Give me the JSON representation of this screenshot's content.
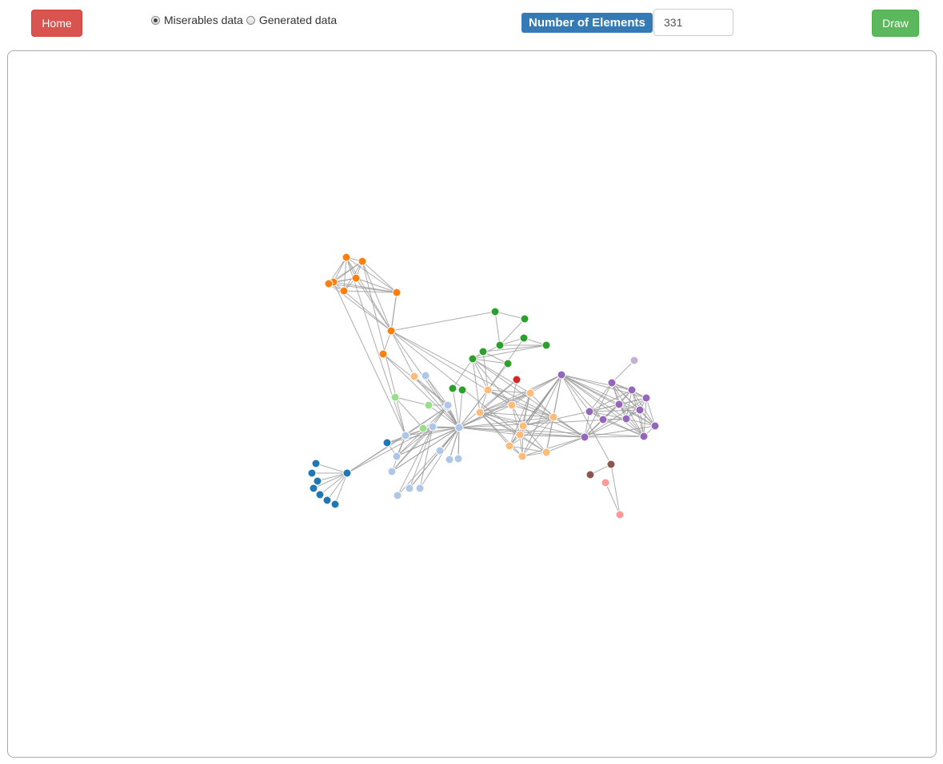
{
  "toolbar": {
    "home_label": "Home",
    "draw_label": "Draw",
    "dataset_options": [
      "Miserables data",
      "Generated data"
    ],
    "selected_dataset": "Miserables data",
    "elements_label": "Number of Elements",
    "elements_value": "331"
  },
  "colors": {
    "home": "#d9534f",
    "draw": "#5cb85c",
    "label": "#337ab7",
    "link": "#999999",
    "palette": [
      "#1f77b4",
      "#aec7e8",
      "#ff7f0e",
      "#ffbb78",
      "#2ca02c",
      "#98df8a",
      "#d62728",
      "#ff9896",
      "#9467bd",
      "#c5b0d5",
      "#8c564b"
    ]
  },
  "graph": {
    "nodes": [
      {
        "id": "n1",
        "group": 0
      },
      {
        "id": "n2",
        "group": 0
      },
      {
        "id": "n3",
        "group": 0
      },
      {
        "id": "n4",
        "group": 0
      },
      {
        "id": "n5",
        "group": 0
      },
      {
        "id": "n6",
        "group": 0
      },
      {
        "id": "n7",
        "group": 0
      },
      {
        "id": "n8",
        "group": 0
      },
      {
        "id": "n9",
        "group": 0
      },
      {
        "id": "n10",
        "group": 1
      },
      {
        "id": "n11",
        "group": 1
      },
      {
        "id": "n12",
        "group": 1
      },
      {
        "id": "n13",
        "group": 1
      },
      {
        "id": "n14",
        "group": 1
      },
      {
        "id": "n15",
        "group": 1
      },
      {
        "id": "n16",
        "group": 1
      },
      {
        "id": "n17",
        "group": 1
      },
      {
        "id": "n18",
        "group": 1
      },
      {
        "id": "n19",
        "group": 1
      },
      {
        "id": "n20",
        "group": 1
      },
      {
        "id": "n21",
        "group": 1
      },
      {
        "id": "n22",
        "group": 1
      },
      {
        "id": "n23",
        "group": 1
      },
      {
        "id": "n24",
        "group": 2
      },
      {
        "id": "n25",
        "group": 2
      },
      {
        "id": "n26",
        "group": 2
      },
      {
        "id": "n27",
        "group": 2
      },
      {
        "id": "n28",
        "group": 2
      },
      {
        "id": "n29",
        "group": 2
      },
      {
        "id": "n30",
        "group": 2
      },
      {
        "id": "n31",
        "group": 2
      },
      {
        "id": "n32",
        "group": 2
      },
      {
        "id": "n33",
        "group": 3
      },
      {
        "id": "n34",
        "group": 3
      },
      {
        "id": "n35",
        "group": 3
      },
      {
        "id": "n36",
        "group": 3
      },
      {
        "id": "n37",
        "group": 3
      },
      {
        "id": "n38",
        "group": 3
      },
      {
        "id": "n39",
        "group": 3
      },
      {
        "id": "n40",
        "group": 3
      },
      {
        "id": "n41",
        "group": 3
      },
      {
        "id": "n42",
        "group": 3
      },
      {
        "id": "n43",
        "group": 3
      },
      {
        "id": "n44",
        "group": 4
      },
      {
        "id": "n45",
        "group": 4
      },
      {
        "id": "n46",
        "group": 4
      },
      {
        "id": "n47",
        "group": 4
      },
      {
        "id": "n48",
        "group": 4
      },
      {
        "id": "n49",
        "group": 4
      },
      {
        "id": "n50",
        "group": 4
      },
      {
        "id": "n51",
        "group": 4
      },
      {
        "id": "n52",
        "group": 4
      },
      {
        "id": "n53",
        "group": 4
      },
      {
        "id": "n54",
        "group": 5
      },
      {
        "id": "n55",
        "group": 5
      },
      {
        "id": "n56",
        "group": 5
      },
      {
        "id": "n57",
        "group": 6
      },
      {
        "id": "n58",
        "group": 7
      },
      {
        "id": "n59",
        "group": 7
      },
      {
        "id": "n60",
        "group": 8
      },
      {
        "id": "n61",
        "group": 8
      },
      {
        "id": "n62",
        "group": 8
      },
      {
        "id": "n63",
        "group": 8
      },
      {
        "id": "n64",
        "group": 8
      },
      {
        "id": "n65",
        "group": 8
      },
      {
        "id": "n66",
        "group": 8
      },
      {
        "id": "n67",
        "group": 8
      },
      {
        "id": "n68",
        "group": 8
      },
      {
        "id": "n69",
        "group": 8
      },
      {
        "id": "n70",
        "group": 8
      },
      {
        "id": "n71",
        "group": 8
      },
      {
        "id": "n72",
        "group": 9
      },
      {
        "id": "n73",
        "group": 10
      },
      {
        "id": "n74",
        "group": 10
      }
    ],
    "links": [
      [
        "n1",
        "n2"
      ],
      [
        "n1",
        "n3"
      ],
      [
        "n1",
        "n4"
      ],
      [
        "n1",
        "n5"
      ],
      [
        "n1",
        "n6"
      ],
      [
        "n1",
        "n7"
      ],
      [
        "n1",
        "n8"
      ],
      [
        "n1",
        "n10"
      ],
      [
        "n1",
        "n11"
      ],
      [
        "n1",
        "n12"
      ],
      [
        "n9",
        "n11"
      ],
      [
        "n9",
        "n13"
      ],
      [
        "n10",
        "n11"
      ],
      [
        "n10",
        "n12"
      ],
      [
        "n10",
        "n13"
      ],
      [
        "n10",
        "n14"
      ],
      [
        "n10",
        "n19"
      ],
      [
        "n10",
        "n24"
      ],
      [
        "n10",
        "n25"
      ],
      [
        "n10",
        "n26"
      ],
      [
        "n11",
        "n12"
      ],
      [
        "n11",
        "n13"
      ],
      [
        "n11",
        "n19"
      ],
      [
        "n11",
        "n15"
      ],
      [
        "n11",
        "n14"
      ],
      [
        "n11",
        "n16"
      ],
      [
        "n11",
        "n17"
      ],
      [
        "n12",
        "n14"
      ],
      [
        "n12",
        "n13"
      ],
      [
        "n12",
        "n19"
      ],
      [
        "n13",
        "n19"
      ],
      [
        "n14",
        "n19"
      ],
      [
        "n15",
        "n19"
      ],
      [
        "n9",
        "n19"
      ],
      [
        "n18",
        "n19"
      ],
      [
        "n18",
        "n20"
      ],
      [
        "n21",
        "n19"
      ],
      [
        "n22",
        "n19"
      ],
      [
        "n23",
        "n19"
      ],
      [
        "n17",
        "n19"
      ],
      [
        "n16",
        "n19"
      ],
      [
        "n20",
        "n19"
      ],
      [
        "n20",
        "n55"
      ],
      [
        "n54",
        "n55"
      ],
      [
        "n54",
        "n56"
      ],
      [
        "n55",
        "n19"
      ],
      [
        "n56",
        "n19"
      ],
      [
        "n24",
        "n25"
      ],
      [
        "n24",
        "n26"
      ],
      [
        "n24",
        "n27"
      ],
      [
        "n24",
        "n28"
      ],
      [
        "n24",
        "n29"
      ],
      [
        "n24",
        "n30"
      ],
      [
        "n25",
        "n26"
      ],
      [
        "n25",
        "n27"
      ],
      [
        "n25",
        "n28"
      ],
      [
        "n25",
        "n29"
      ],
      [
        "n25",
        "n30"
      ],
      [
        "n25",
        "n31"
      ],
      [
        "n26",
        "n27"
      ],
      [
        "n26",
        "n28"
      ],
      [
        "n26",
        "n29"
      ],
      [
        "n26",
        "n30"
      ],
      [
        "n26",
        "n31"
      ],
      [
        "n27",
        "n28"
      ],
      [
        "n27",
        "n29"
      ],
      [
        "n27",
        "n30"
      ],
      [
        "n27",
        "n31"
      ],
      [
        "n28",
        "n29"
      ],
      [
        "n28",
        "n30"
      ],
      [
        "n28",
        "n31"
      ],
      [
        "n29",
        "n30"
      ],
      [
        "n29",
        "n31"
      ],
      [
        "n30",
        "n31"
      ],
      [
        "n30",
        "n31"
      ],
      [
        "n31",
        "n32"
      ],
      [
        "n31",
        "n33"
      ],
      [
        "n31",
        "n19"
      ],
      [
        "n31",
        "n40"
      ],
      [
        "n32",
        "n20"
      ],
      [
        "n32",
        "n19"
      ],
      [
        "n33",
        "n20"
      ],
      [
        "n33",
        "n19"
      ],
      [
        "n31",
        "n44"
      ],
      [
        "n31",
        "n35"
      ],
      [
        "n31",
        "n38"
      ],
      [
        "n44",
        "n45"
      ],
      [
        "n44",
        "n46"
      ],
      [
        "n45",
        "n46"
      ],
      [
        "n46",
        "n47"
      ],
      [
        "n46",
        "n48"
      ],
      [
        "n46",
        "n49"
      ],
      [
        "n47",
        "n48"
      ],
      [
        "n49",
        "n50"
      ],
      [
        "n49",
        "n51"
      ],
      [
        "n49",
        "n52"
      ],
      [
        "n49",
        "n35"
      ],
      [
        "n49",
        "n36"
      ],
      [
        "n49",
        "n37"
      ],
      [
        "n49",
        "n60"
      ],
      [
        "n48",
        "n49"
      ],
      [
        "n48",
        "n50"
      ],
      [
        "n47",
        "n34"
      ],
      [
        "n50",
        "n51"
      ],
      [
        "n50",
        "n34"
      ],
      [
        "n52",
        "n19"
      ],
      [
        "n53",
        "n19"
      ],
      [
        "n53",
        "n52"
      ],
      [
        "n51",
        "n19"
      ],
      [
        "n34",
        "n35"
      ],
      [
        "n34",
        "n36"
      ],
      [
        "n34",
        "n37"
      ],
      [
        "n34",
        "n38"
      ],
      [
        "n34",
        "n19"
      ],
      [
        "n34",
        "n60"
      ],
      [
        "n34",
        "n49"
      ],
      [
        "n35",
        "n36"
      ],
      [
        "n35",
        "n37"
      ],
      [
        "n35",
        "n38"
      ],
      [
        "n35",
        "n39"
      ],
      [
        "n35",
        "n19"
      ],
      [
        "n35",
        "n40"
      ],
      [
        "n36",
        "n37"
      ],
      [
        "n36",
        "n38"
      ],
      [
        "n36",
        "n39"
      ],
      [
        "n36",
        "n40"
      ],
      [
        "n36",
        "n41"
      ],
      [
        "n36",
        "n42"
      ],
      [
        "n36",
        "n43"
      ],
      [
        "n37",
        "n38"
      ],
      [
        "n37",
        "n39"
      ],
      [
        "n37",
        "n40"
      ],
      [
        "n37",
        "n41"
      ],
      [
        "n37",
        "n19"
      ],
      [
        "n37",
        "n68"
      ],
      [
        "n38",
        "n39"
      ],
      [
        "n38",
        "n41"
      ],
      [
        "n38",
        "n42"
      ],
      [
        "n38",
        "n43"
      ],
      [
        "n38",
        "n19"
      ],
      [
        "n38",
        "n60"
      ],
      [
        "n39",
        "n40"
      ],
      [
        "n39",
        "n41"
      ],
      [
        "n39",
        "n42"
      ],
      [
        "n39",
        "n43"
      ],
      [
        "n39",
        "n68"
      ],
      [
        "n39",
        "n61"
      ],
      [
        "n40",
        "n41"
      ],
      [
        "n40",
        "n42"
      ],
      [
        "n40",
        "n43"
      ],
      [
        "n40",
        "n19"
      ],
      [
        "n40",
        "n60"
      ],
      [
        "n40",
        "n68"
      ],
      [
        "n41",
        "n42"
      ],
      [
        "n41",
        "n43"
      ],
      [
        "n42",
        "n43"
      ],
      [
        "n42",
        "n68"
      ],
      [
        "n43",
        "n68"
      ],
      [
        "n43",
        "n60"
      ],
      [
        "n41",
        "n68"
      ],
      [
        "n57",
        "n36"
      ],
      [
        "n57",
        "n35"
      ],
      [
        "n57",
        "n19"
      ],
      [
        "n60",
        "n61"
      ],
      [
        "n60",
        "n62"
      ],
      [
        "n60",
        "n63"
      ],
      [
        "n60",
        "n64"
      ],
      [
        "n60",
        "n65"
      ],
      [
        "n60",
        "n66"
      ],
      [
        "n60",
        "n67"
      ],
      [
        "n60",
        "n69"
      ],
      [
        "n60",
        "n71"
      ],
      [
        "n60",
        "n38"
      ],
      [
        "n60",
        "n19"
      ],
      [
        "n60",
        "n36"
      ],
      [
        "n60",
        "n40"
      ],
      [
        "n60",
        "n42"
      ],
      [
        "n61",
        "n62"
      ],
      [
        "n61",
        "n63"
      ],
      [
        "n61",
        "n64"
      ],
      [
        "n61",
        "n65"
      ],
      [
        "n61",
        "n66"
      ],
      [
        "n61",
        "n68"
      ],
      [
        "n61",
        "n69"
      ],
      [
        "n61",
        "n70"
      ],
      [
        "n61",
        "n71"
      ],
      [
        "n62",
        "n63"
      ],
      [
        "n62",
        "n64"
      ],
      [
        "n62",
        "n65"
      ],
      [
        "n62",
        "n66"
      ],
      [
        "n62",
        "n67"
      ],
      [
        "n62",
        "n70"
      ],
      [
        "n62",
        "n71"
      ],
      [
        "n63",
        "n64"
      ],
      [
        "n63",
        "n65"
      ],
      [
        "n63",
        "n66"
      ],
      [
        "n63",
        "n67"
      ],
      [
        "n63",
        "n68"
      ],
      [
        "n63",
        "n70"
      ],
      [
        "n63",
        "n71"
      ],
      [
        "n64",
        "n65"
      ],
      [
        "n64",
        "n66"
      ],
      [
        "n64",
        "n67"
      ],
      [
        "n64",
        "n68"
      ],
      [
        "n64",
        "n70"
      ],
      [
        "n64",
        "n71"
      ],
      [
        "n65",
        "n66"
      ],
      [
        "n65",
        "n67"
      ],
      [
        "n65",
        "n68"
      ],
      [
        "n65",
        "n69"
      ],
      [
        "n65",
        "n70"
      ],
      [
        "n65",
        "n71"
      ],
      [
        "n66",
        "n67"
      ],
      [
        "n66",
        "n68"
      ],
      [
        "n66",
        "n70"
      ],
      [
        "n66",
        "n71"
      ],
      [
        "n67",
        "n68"
      ],
      [
        "n67",
        "n70"
      ],
      [
        "n67",
        "n71"
      ],
      [
        "n68",
        "n69"
      ],
      [
        "n68",
        "n70"
      ],
      [
        "n68",
        "n71"
      ],
      [
        "n68",
        "n19"
      ],
      [
        "n68",
        "n73"
      ],
      [
        "n68",
        "n36"
      ],
      [
        "n68",
        "n38"
      ],
      [
        "n68",
        "n39"
      ],
      [
        "n68",
        "n40"
      ],
      [
        "n69",
        "n70"
      ],
      [
        "n69",
        "n71"
      ],
      [
        "n70",
        "n71"
      ],
      [
        "n70",
        "n19"
      ],
      [
        "n71",
        "n19"
      ],
      [
        "n72",
        "n62"
      ],
      [
        "n73",
        "n74"
      ],
      [
        "n73",
        "n58"
      ],
      [
        "n58",
        "n59"
      ],
      [
        "n19",
        "n16"
      ],
      [
        "n19",
        "n11"
      ],
      [
        "n19",
        "n21"
      ],
      [
        "n19",
        "n22"
      ],
      [
        "n19",
        "n23"
      ],
      [
        "n19",
        "n12"
      ],
      [
        "n19",
        "n13"
      ],
      [
        "n19",
        "n14"
      ]
    ]
  }
}
